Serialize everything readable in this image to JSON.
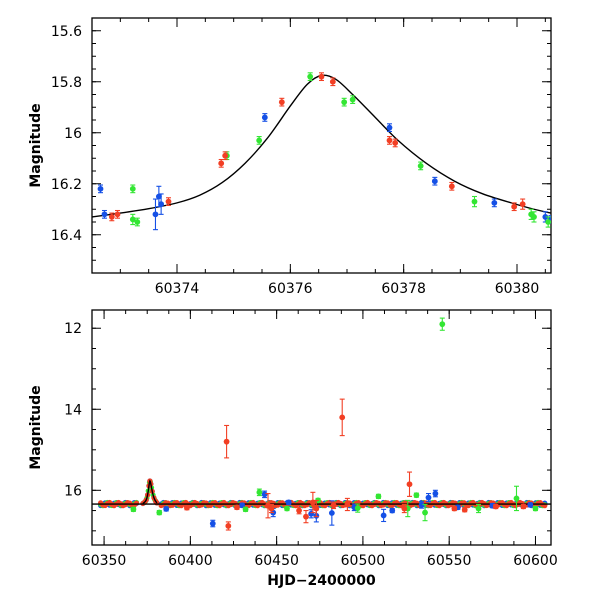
{
  "colors": {
    "blue": "#1550e6",
    "green": "#33e633",
    "red": "#f23f24",
    "black": "#000000"
  },
  "chart_data": [
    {
      "type": "scatter",
      "panel": "top",
      "ylabel": "Magnitude",
      "xlabel": "",
      "xlim": [
        60372.5,
        60380.6
      ],
      "ylim": [
        16.55,
        15.55
      ],
      "inverted_y": true,
      "xticks": [
        60374,
        60376,
        60378,
        60380
      ],
      "yticks": [
        15.6,
        15.8,
        16,
        16.2,
        16.4
      ],
      "xtick_labels": [
        "60374",
        "60376",
        "60378",
        "60380"
      ],
      "ytick_labels": [
        "15.6",
        "15.8",
        "16",
        "16.2",
        "16.4"
      ],
      "model": {
        "peak_x": 60376.55,
        "peak_mag": 15.775,
        "baseline_mag": 16.345,
        "curve": [
          [
            60372.5,
            16.33
          ],
          [
            60373.0,
            16.315
          ],
          [
            60373.5,
            16.298
          ],
          [
            60374.0,
            16.275
          ],
          [
            60374.4,
            16.245
          ],
          [
            60374.8,
            16.195
          ],
          [
            60375.2,
            16.12
          ],
          [
            60375.6,
            16.02
          ],
          [
            60376.0,
            15.895
          ],
          [
            60376.3,
            15.81
          ],
          [
            60376.55,
            15.775
          ],
          [
            60376.8,
            15.79
          ],
          [
            60377.1,
            15.85
          ],
          [
            60377.5,
            15.94
          ],
          [
            60377.9,
            16.03
          ],
          [
            60378.4,
            16.12
          ],
          [
            60378.9,
            16.19
          ],
          [
            60379.4,
            16.24
          ],
          [
            60379.9,
            16.275
          ],
          [
            60380.3,
            16.3
          ],
          [
            60380.6,
            16.315
          ]
        ]
      },
      "series": [
        {
          "color": "blue",
          "points": [
            [
              60372.65,
              16.22,
              0.015
            ],
            [
              60372.72,
              16.32,
              0.015
            ],
            [
              60375.55,
              15.94,
              0.015
            ],
            [
              60377.75,
              15.98,
              0.015
            ],
            [
              60378.55,
              16.19,
              0.015
            ],
            [
              60379.6,
              16.275,
              0.015
            ],
            [
              60380.5,
              16.33,
              0.02
            ],
            [
              60380.6,
              16.34,
              0.015
            ],
            [
              60373.62,
              16.32,
              0.06
            ],
            [
              60373.68,
              16.25,
              0.04
            ],
            [
              60373.72,
              16.28,
              0.04
            ]
          ]
        },
        {
          "color": "green",
          "points": [
            [
              60373.22,
              16.22,
              0.015
            ],
            [
              60373.22,
              16.34,
              0.02
            ],
            [
              60373.3,
              16.35,
              0.015
            ],
            [
              60374.88,
              16.09,
              0.015
            ],
            [
              60375.45,
              16.03,
              0.015
            ],
            [
              60376.35,
              15.78,
              0.015
            ],
            [
              60376.95,
              15.88,
              0.015
            ],
            [
              60377.1,
              15.87,
              0.015
            ],
            [
              60378.3,
              16.13,
              0.015
            ],
            [
              60379.25,
              16.27,
              0.02
            ],
            [
              60380.25,
              16.32,
              0.02
            ],
            [
              60380.3,
              16.33,
              0.02
            ],
            [
              60380.55,
              16.35,
              0.02
            ]
          ]
        },
        {
          "color": "red",
          "points": [
            [
              60372.85,
              16.33,
              0.015
            ],
            [
              60372.95,
              16.32,
              0.015
            ],
            [
              60373.85,
              16.27,
              0.015
            ],
            [
              60374.78,
              16.12,
              0.015
            ],
            [
              60374.85,
              16.09,
              0.015
            ],
            [
              60375.85,
              15.88,
              0.015
            ],
            [
              60376.55,
              15.78,
              0.015
            ],
            [
              60376.75,
              15.8,
              0.015
            ],
            [
              60377.75,
              16.03,
              0.015
            ],
            [
              60377.85,
              16.04,
              0.015
            ],
            [
              60378.85,
              16.21,
              0.015
            ],
            [
              60379.95,
              16.29,
              0.015
            ],
            [
              60380.1,
              16.28,
              0.02
            ]
          ]
        }
      ]
    },
    {
      "type": "scatter",
      "panel": "bottom",
      "ylabel": "Magnitude",
      "xlabel": "HJD−2400000",
      "xlim": [
        60343,
        60609
      ],
      "ylim": [
        17.35,
        11.55
      ],
      "inverted_y": true,
      "xticks": [
        60350,
        60400,
        60450,
        60500,
        60550,
        60600
      ],
      "yticks": [
        12,
        14,
        16
      ],
      "xtick_labels": [
        "60350",
        "60400",
        "60450",
        "60500",
        "60550",
        "60600"
      ],
      "ytick_labels": [
        "12",
        "14",
        "16"
      ],
      "baseline_mag": 16.34,
      "series": [
        {
          "color": "blue",
          "points": [
            [
              60386,
              16.46,
              0.05
            ],
            [
              60413,
              16.82,
              0.08
            ],
            [
              60430,
              16.37,
              0.05
            ],
            [
              60443,
              16.1,
              0.08
            ],
            [
              60448,
              16.55,
              0.1
            ],
            [
              60457,
              16.3,
              0.05
            ],
            [
              60470,
              16.58,
              0.1
            ],
            [
              60473,
              16.63,
              0.15
            ],
            [
              60482,
              16.56,
              0.3
            ],
            [
              60495,
              16.42,
              0.08
            ],
            [
              60512,
              16.62,
              0.15
            ],
            [
              60517,
              16.5,
              0.05
            ],
            [
              60534,
              16.36,
              0.08
            ],
            [
              60538,
              16.18,
              0.1
            ],
            [
              60542,
              16.08,
              0.08
            ],
            [
              60555,
              16.42,
              0.05
            ],
            [
              60575,
              16.38,
              0.05
            ],
            [
              60597,
              16.36,
              0.05
            ]
          ]
        },
        {
          "color": "green",
          "points": [
            [
              60367,
              16.47,
              0.05
            ],
            [
              60382,
              16.55,
              0.05
            ],
            [
              60432,
              16.47,
              0.05
            ],
            [
              60440,
              16.05,
              0.08
            ],
            [
              60456,
              16.45,
              0.05
            ],
            [
              60474,
              16.25,
              0.05
            ],
            [
              60497,
              16.44,
              0.1
            ],
            [
              60509,
              16.15,
              0.05
            ],
            [
              60526,
              16.45,
              0.2
            ],
            [
              60531,
              16.12,
              0.05
            ],
            [
              60536,
              16.55,
              0.2
            ],
            [
              60546,
              11.9,
              0.15
            ],
            [
              60567,
              16.45,
              0.1
            ],
            [
              60589,
              16.2,
              0.3
            ],
            [
              60600,
              16.45,
              0.05
            ]
          ]
        },
        {
          "color": "red",
          "points": [
            [
              60398,
              16.43,
              0.05
            ],
            [
              60421,
              14.8,
              0.4
            ],
            [
              60422,
              16.88,
              0.1
            ],
            [
              60427,
              16.42,
              0.05
            ],
            [
              60445,
              16.38,
              0.3
            ],
            [
              60447,
              16.45,
              0.1
            ],
            [
              60463,
              16.5,
              0.08
            ],
            [
              60467,
              16.65,
              0.15
            ],
            [
              60471,
              16.3,
              0.25
            ],
            [
              60473,
              16.45,
              0.2
            ],
            [
              60483,
              16.37,
              0.08
            ],
            [
              60488,
              14.2,
              0.45
            ],
            [
              60491,
              16.35,
              0.15
            ],
            [
              60524,
              16.45,
              0.1
            ],
            [
              60527,
              15.85,
              0.3
            ],
            [
              60553,
              16.45,
              0.05
            ],
            [
              60559,
              16.48,
              0.05
            ],
            [
              60577,
              16.4,
              0.05
            ],
            [
              60593,
              16.4,
              0.05
            ]
          ]
        }
      ]
    }
  ]
}
